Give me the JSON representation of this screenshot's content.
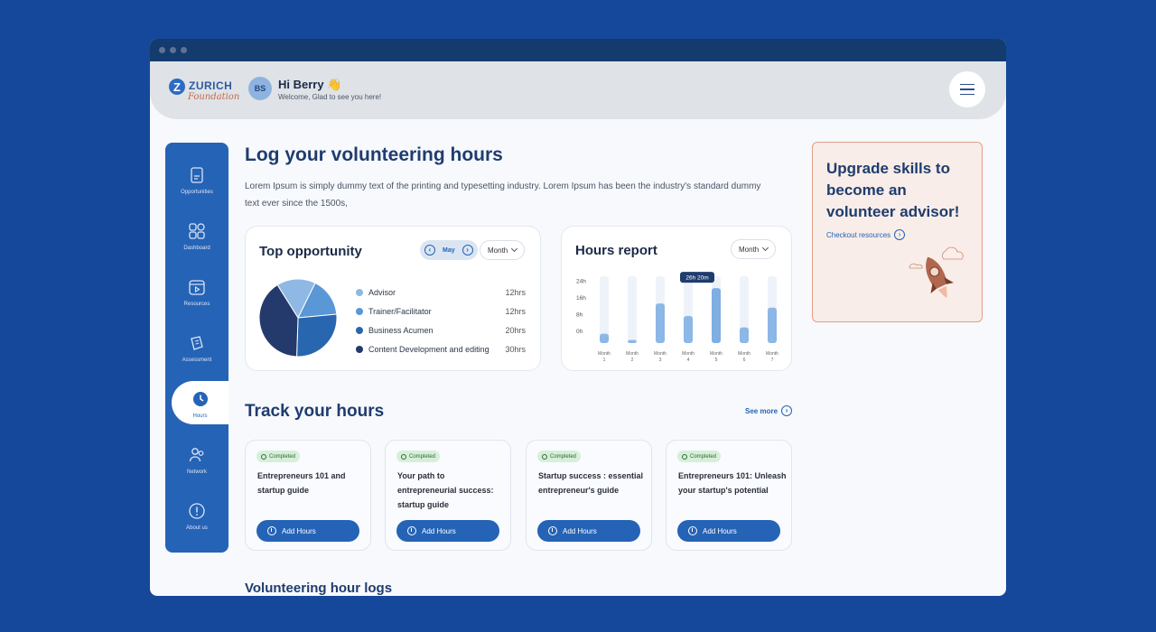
{
  "brand": {
    "mark": "Z",
    "name": "ZURICH",
    "sub": "Foundation"
  },
  "user": {
    "initials": "BS",
    "greeting": "Hi Berry 👋",
    "welcome": "Welcome, Glad to see you here!"
  },
  "sidebar": {
    "items": [
      {
        "label": "Opportunities",
        "icon": "document-icon"
      },
      {
        "label": "Dashboard",
        "icon": "grid-icon"
      },
      {
        "label": "Resources",
        "icon": "play-calendar-icon"
      },
      {
        "label": "Assessment",
        "icon": "notes-icon"
      },
      {
        "label": "Hours",
        "icon": "clock-icon",
        "active": true
      },
      {
        "label": "Network",
        "icon": "people-icon"
      },
      {
        "label": "About us",
        "icon": "info-icon"
      }
    ]
  },
  "main": {
    "title": "Log your volunteering hours",
    "description": "Lorem Ipsum is simply dummy text of the printing and typesetting industry. Lorem Ipsum has been the industry's standard dummy text ever since the 1500s,"
  },
  "top_opportunity": {
    "title": "Top opportunity",
    "month_nav": "May",
    "period_select": "Month",
    "items": [
      {
        "name": "Advisor",
        "value": "12hrs",
        "color": "#8fb8e4"
      },
      {
        "name": "Trainer/Facilitator",
        "value": "12hrs",
        "color": "#5a97d6"
      },
      {
        "name": "Business Acumen",
        "value": "20hrs",
        "color": "#2866b0"
      },
      {
        "name": "Content Development and editing",
        "value": "30hrs",
        "color": "#243a6c"
      }
    ]
  },
  "hours_report": {
    "title": "Hours report",
    "period_select": "Month",
    "tooltip": "26h 20m"
  },
  "chart_data": {
    "type": "bar",
    "title": "Hours report",
    "categories": [
      "Month 1",
      "Month 2",
      "Month 3",
      "Month 4",
      "Month 5",
      "Month 6",
      "Month 7"
    ],
    "y_ticks": [
      "32h",
      "24h",
      "16h",
      "8h",
      "0h"
    ],
    "ylim": [
      0,
      32
    ],
    "series": [
      {
        "values": [
          4.5,
          1.5,
          19,
          13,
          26.3,
          7.5,
          17
        ]
      }
    ],
    "background_max": 32,
    "highlight_index": 4,
    "grid": false
  },
  "upgrade": {
    "title": "Upgrade skills to become an volunteer advisor!",
    "link": "Checkout resources"
  },
  "track": {
    "title": "Track your hours",
    "see_more": "See more",
    "courses": [
      {
        "status": "Completed",
        "title": "Entrepreneurs 101 and startup guide",
        "button": "Add Hours"
      },
      {
        "status": "Completed",
        "title": "Your path to entrepreneurial success: startup guide",
        "button": "Add Hours"
      },
      {
        "status": "Completed",
        "title": "Startup success : essential entrepreneur's guide",
        "button": "Add Hours"
      },
      {
        "status": "Completed",
        "title": "Entrepreneurs 101: Unleash your startup's potential",
        "button": "Add Hours"
      }
    ]
  },
  "logs": {
    "title": "Volunteering hour logs"
  }
}
